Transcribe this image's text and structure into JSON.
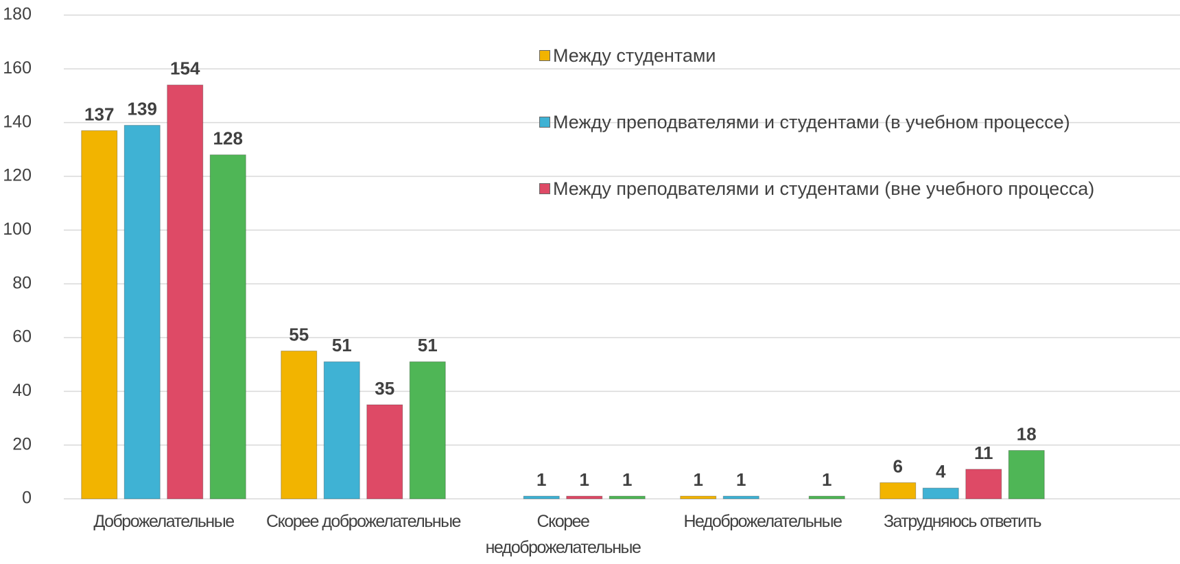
{
  "chart_data": {
    "type": "bar",
    "categories": [
      "Доброжелательные",
      "Скорее доброжелательные",
      "Скорее недоброжелательные",
      "Недоброжелательные",
      "Затрудняюсь ответить"
    ],
    "series": [
      {
        "name": "Между студентами",
        "color": "#f2b400",
        "values": [
          137,
          55,
          null,
          1,
          6
        ]
      },
      {
        "name": "Между преподвателями и студентами (в учебном процессе)",
        "color": "#3fb2d4",
        "values": [
          139,
          51,
          1,
          1,
          4
        ]
      },
      {
        "name": "Между преподвателями и студентами (вне учебного процесса)",
        "color": "#de4a66",
        "values": [
          154,
          35,
          1,
          null,
          11
        ]
      },
      {
        "color": "#4fb656",
        "values": [
          128,
          51,
          1,
          1,
          18
        ]
      }
    ],
    "ylim": [
      0,
      180
    ],
    "yticks": [
      0,
      20,
      40,
      60,
      80,
      100,
      120,
      140,
      160,
      180
    ],
    "grid": true,
    "legend": "top-right"
  }
}
